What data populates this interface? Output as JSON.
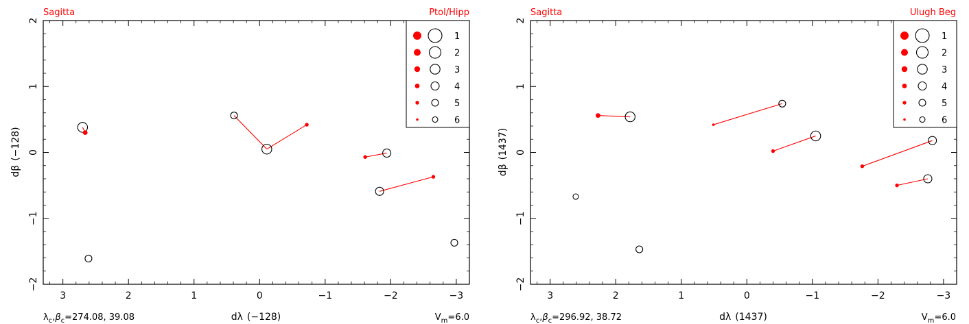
{
  "chart_data": [
    {
      "type": "scatter",
      "constellation": "Sagitta",
      "catalog": "Ptol/Hipp",
      "xlabel_prefix": "dλ",
      "xlabel_value": "(−128)",
      "ylabel_prefix": "dβ",
      "ylabel_value": "(−128)",
      "center_label": "λc,βc=274.08, 39.08",
      "center_lambda_beta": "=274.08, 39.08",
      "vm_label": "Vm=6.0",
      "vm_value": "=6.0",
      "xlim": [
        3.3,
        -3.2
      ],
      "ylim": [
        -2.0,
        2.0
      ],
      "xticks": [
        3,
        2,
        1,
        0,
        -1,
        -2,
        -3
      ],
      "xtick_labels": [
        "3",
        "2",
        "1",
        "0",
        "−1",
        "−2",
        "−3"
      ],
      "yticks": [
        -2,
        -1,
        0,
        1,
        2
      ],
      "ytick_labels": [
        "−2",
        "−1",
        "0",
        "1",
        "2"
      ],
      "modern_stars": [
        {
          "x": 2.7,
          "y": 0.38,
          "mag": 3
        },
        {
          "x": -0.11,
          "y": 0.05,
          "mag": 3
        },
        {
          "x": 0.39,
          "y": 0.56,
          "mag": 5
        },
        {
          "x": -1.94,
          "y": -0.01,
          "mag": 4
        },
        {
          "x": -1.83,
          "y": -0.59,
          "mag": 4
        },
        {
          "x": 2.61,
          "y": -1.61,
          "mag": 5
        },
        {
          "x": -2.97,
          "y": -1.37,
          "mag": 5
        }
      ],
      "catalog_stars": [
        {
          "x": 2.66,
          "y": 0.3,
          "mag": 4
        },
        {
          "x": -0.72,
          "y": 0.42,
          "mag": 5
        },
        {
          "x": -1.61,
          "y": -0.07,
          "mag": 5
        },
        {
          "x": -2.65,
          "y": -0.37,
          "mag": 5
        }
      ],
      "links": [
        {
          "from": [
            2.7,
            0.38
          ],
          "to": [
            2.66,
            0.3
          ]
        },
        {
          "from": [
            -0.11,
            0.05
          ],
          "to": [
            0.39,
            0.56
          ]
        },
        {
          "from": [
            -0.11,
            0.05
          ],
          "to": [
            -0.72,
            0.42
          ]
        },
        {
          "from": [
            -1.94,
            -0.01
          ],
          "to": [
            -1.61,
            -0.07
          ]
        },
        {
          "from": [
            -1.83,
            -0.59
          ],
          "to": [
            -2.65,
            -0.37
          ]
        }
      ],
      "legend": {
        "placement": "top-right",
        "magnitudes": [
          "1",
          "2",
          "3",
          "4",
          "5",
          "6"
        ]
      }
    },
    {
      "type": "scatter",
      "constellation": "Sagitta",
      "catalog": "Ulugh Beg",
      "xlabel_prefix": "dλ",
      "xlabel_value": "(1437)",
      "ylabel_prefix": "dβ",
      "ylabel_value": "(1437)",
      "center_label": "λc,βc=296.92, 38.72",
      "center_lambda_beta": "=296.92, 38.72",
      "vm_label": "Vm=6.0",
      "vm_value": "=6.0",
      "xlim": [
        3.3,
        -3.2
      ],
      "ylim": [
        -2.0,
        2.0
      ],
      "xticks": [
        3,
        2,
        1,
        0,
        -1,
        -2,
        -3
      ],
      "xtick_labels": [
        "3",
        "2",
        "1",
        "0",
        "−1",
        "−2",
        "−3"
      ],
      "yticks": [
        -2,
        -1,
        0,
        1,
        2
      ],
      "ytick_labels": [
        "−2",
        "−1",
        "0",
        "1",
        "2"
      ],
      "modern_stars": [
        {
          "x": 1.78,
          "y": 0.54,
          "mag": 3
        },
        {
          "x": -0.54,
          "y": 0.74,
          "mag": 5
        },
        {
          "x": -1.05,
          "y": 0.25,
          "mag": 3
        },
        {
          "x": -2.83,
          "y": 0.18,
          "mag": 4
        },
        {
          "x": -2.76,
          "y": -0.4,
          "mag": 4
        },
        {
          "x": 2.61,
          "y": -0.67,
          "mag": 6
        },
        {
          "x": 1.64,
          "y": -1.47,
          "mag": 5
        }
      ],
      "catalog_stars": [
        {
          "x": 2.27,
          "y": 0.56,
          "mag": 4
        },
        {
          "x": 0.51,
          "y": 0.42,
          "mag": 6
        },
        {
          "x": -0.4,
          "y": 0.02,
          "mag": 5
        },
        {
          "x": -1.76,
          "y": -0.21,
          "mag": 5
        },
        {
          "x": -2.29,
          "y": -0.5,
          "mag": 5
        }
      ],
      "links": [
        {
          "from": [
            1.78,
            0.54
          ],
          "to": [
            2.27,
            0.56
          ]
        },
        {
          "from": [
            -0.54,
            0.74
          ],
          "to": [
            0.51,
            0.42
          ]
        },
        {
          "from": [
            -1.05,
            0.25
          ],
          "to": [
            -0.4,
            0.02
          ]
        },
        {
          "from": [
            -2.83,
            0.18
          ],
          "to": [
            -1.76,
            -0.21
          ]
        },
        {
          "from": [
            -2.76,
            -0.4
          ],
          "to": [
            -2.29,
            -0.5
          ]
        }
      ],
      "legend": {
        "placement": "top-right",
        "magnitudes": [
          "1",
          "2",
          "3",
          "4",
          "5",
          "6"
        ]
      }
    }
  ],
  "colors": {
    "catalog": "#ff0000",
    "modern": "#000000",
    "frame": "#000000"
  }
}
